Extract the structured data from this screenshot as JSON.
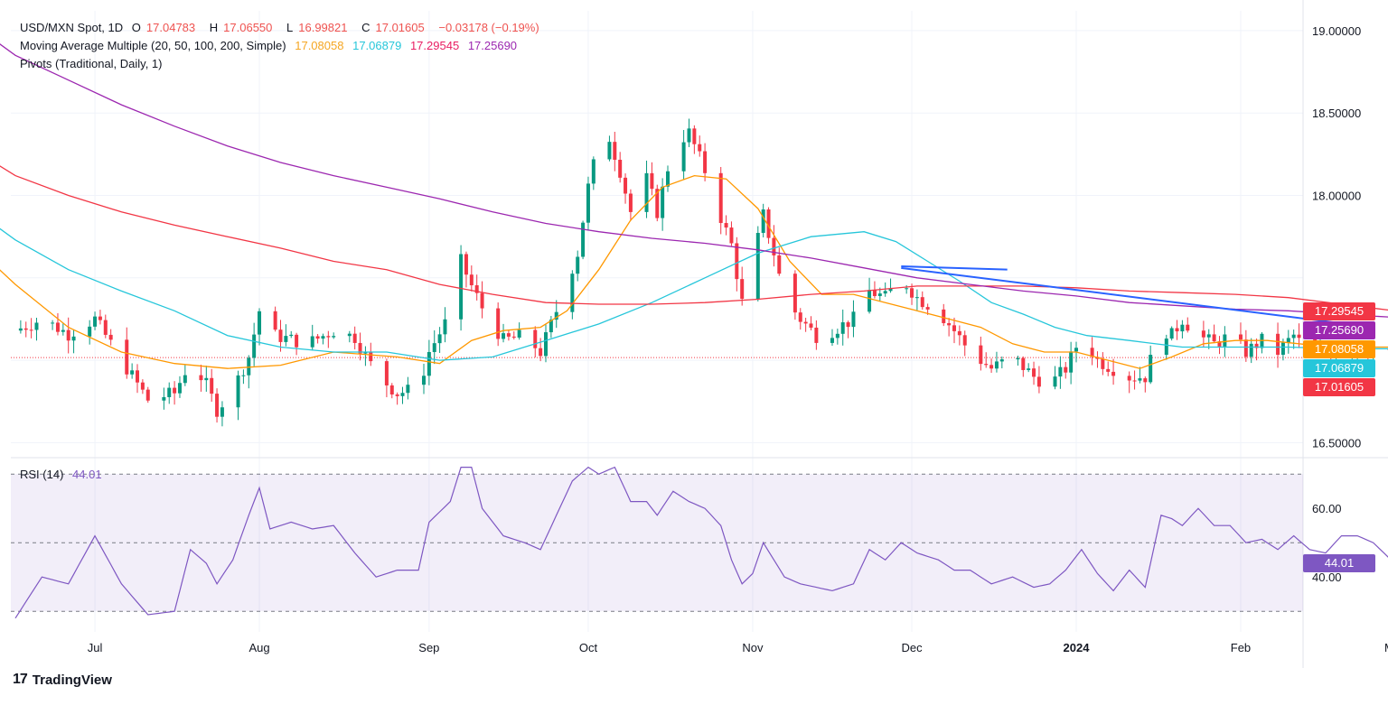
{
  "legend": {
    "symbol": "USD/MXN Spot, 1D",
    "open_label": "O",
    "open": "17.04783",
    "high_label": "H",
    "high": "17.06550",
    "low_label": "L",
    "low": "16.99821",
    "close_label": "C",
    "close": "17.01605",
    "change": "−0.03178 (−0.19%)",
    "ma_label": "Moving Average Multiple (20, 50, 100, 200, Simple)",
    "ma20": "17.08058",
    "ma50": "17.06879",
    "ma100": "17.29545",
    "ma200": "17.25690",
    "pivots_label": "Pivots (Traditional, Daily, 1)",
    "rsi_label": "RSI (14)",
    "rsi_value": "44.01"
  },
  "price_tags": [
    {
      "label": "17.29545",
      "value": 17.29545,
      "color": "#f23645"
    },
    {
      "label": "17.25690",
      "value": 17.2569,
      "color": "#9c27b0"
    },
    {
      "label": "17.08058",
      "value": 17.08058,
      "color": "#ff9800"
    },
    {
      "label": "17.06879",
      "value": 17.06879,
      "color": "#26c6da"
    },
    {
      "label": "17.01605",
      "value": 17.01605,
      "color": "#f23645"
    }
  ],
  "rsi_tag": {
    "label": "44.01",
    "value": 44.01,
    "color": "#7e57c2"
  },
  "brand": {
    "name": "TradingView",
    "logo": "17"
  },
  "colors": {
    "up": "#089981",
    "down": "#f23645",
    "ma20": "#ff9800",
    "ma50": "#26c6da",
    "ma100": "#f23645",
    "ma200": "#9c27b0",
    "trendline": "#2962ff",
    "rsi": "#7e57c2",
    "grid": "#f0f3fa"
  },
  "chart_data": {
    "type": "candlestick",
    "title": "USD/MXN Spot, 1D",
    "ylim": [
      16.42,
      19.12
    ],
    "y_ticks": [
      "19.00000",
      "18.50000",
      "18.00000",
      "16.50000"
    ],
    "y_tick_values": [
      19.0,
      18.5,
      18.0,
      16.5
    ],
    "x_ticks": [
      {
        "label": "Jul",
        "day": 15
      },
      {
        "label": "Aug",
        "day": 46
      },
      {
        "label": "Sep",
        "day": 78
      },
      {
        "label": "Oct",
        "day": 108
      },
      {
        "label": "Nov",
        "day": 139
      },
      {
        "label": "Dec",
        "day": 169
      },
      {
        "label": "2024",
        "day": 200,
        "bold": true
      },
      {
        "label": "Feb",
        "day": 231
      },
      {
        "label": "Mar",
        "day": 260
      }
    ],
    "anchors": [
      [
        0,
        17.18
      ],
      [
        5,
        17.25
      ],
      [
        10,
        17.16
      ],
      [
        15,
        17.25
      ],
      [
        20,
        17.0
      ],
      [
        25,
        16.76
      ],
      [
        30,
        16.8
      ],
      [
        33,
        17.0
      ],
      [
        36,
        16.85
      ],
      [
        38,
        16.7
      ],
      [
        41,
        16.82
      ],
      [
        44,
        17.02
      ],
      [
        46,
        17.3
      ],
      [
        49,
        17.15
      ],
      [
        55,
        17.1
      ],
      [
        60,
        17.18
      ],
      [
        64,
        17.14
      ],
      [
        68,
        16.92
      ],
      [
        72,
        16.8
      ],
      [
        76,
        16.83
      ],
      [
        78,
        17.05
      ],
      [
        82,
        17.28
      ],
      [
        84,
        17.6
      ],
      [
        86,
        17.45
      ],
      [
        88,
        17.32
      ],
      [
        92,
        17.12
      ],
      [
        96,
        17.15
      ],
      [
        99,
        17.05
      ],
      [
        102,
        17.3
      ],
      [
        106,
        17.65
      ],
      [
        108,
        18.05
      ],
      [
        111,
        18.45
      ],
      [
        114,
        18.15
      ],
      [
        116,
        17.9
      ],
      [
        119,
        18.1
      ],
      [
        121,
        17.9
      ],
      [
        124,
        18.3
      ],
      [
        127,
        18.38
      ],
      [
        130,
        18.15
      ],
      [
        132,
        17.95
      ],
      [
        135,
        17.7
      ],
      [
        137,
        17.35
      ],
      [
        139,
        17.6
      ],
      [
        141,
        17.88
      ],
      [
        143,
        17.65
      ],
      [
        145,
        17.38
      ],
      [
        148,
        17.25
      ],
      [
        151,
        17.15
      ],
      [
        154,
        17.18
      ],
      [
        158,
        17.25
      ],
      [
        161,
        17.42
      ],
      [
        164,
        17.38
      ],
      [
        167,
        17.5
      ],
      [
        170,
        17.38
      ],
      [
        174,
        17.3
      ],
      [
        177,
        17.18
      ],
      [
        180,
        17.05
      ],
      [
        184,
        16.95
      ],
      [
        188,
        17.02
      ],
      [
        192,
        16.9
      ],
      [
        195,
        16.85
      ],
      [
        198,
        16.95
      ],
      [
        201,
        17.15
      ],
      [
        204,
        17.0
      ],
      [
        207,
        16.95
      ],
      [
        210,
        16.9
      ],
      [
        213,
        16.9
      ],
      [
        216,
        17.2
      ],
      [
        218,
        17.15
      ],
      [
        220,
        17.25
      ],
      [
        223,
        17.15
      ],
      [
        226,
        17.1
      ],
      [
        229,
        17.15
      ],
      [
        232,
        17.05
      ],
      [
        235,
        17.12
      ],
      [
        238,
        17.05
      ],
      [
        241,
        17.15
      ],
      [
        244,
        17.04
      ],
      [
        247,
        17.06
      ],
      [
        250,
        17.05
      ],
      [
        253,
        17.08
      ],
      [
        256,
        17.07
      ],
      [
        258,
        17.05
      ],
      [
        260,
        17.016
      ]
    ],
    "ma_series": [
      {
        "name": "MA 20",
        "color": "#ff9800",
        "points": [
          [
            -5,
            17.55
          ],
          [
            0,
            17.46
          ],
          [
            10,
            17.2
          ],
          [
            20,
            17.05
          ],
          [
            30,
            16.98
          ],
          [
            40,
            16.95
          ],
          [
            50,
            16.97
          ],
          [
            60,
            17.05
          ],
          [
            72,
            17.02
          ],
          [
            80,
            16.98
          ],
          [
            86,
            17.12
          ],
          [
            92,
            17.18
          ],
          [
            99,
            17.2
          ],
          [
            104,
            17.3
          ],
          [
            110,
            17.55
          ],
          [
            116,
            17.85
          ],
          [
            122,
            18.05
          ],
          [
            128,
            18.12
          ],
          [
            134,
            18.1
          ],
          [
            140,
            17.92
          ],
          [
            146,
            17.6
          ],
          [
            152,
            17.4
          ],
          [
            158,
            17.4
          ],
          [
            164,
            17.35
          ],
          [
            170,
            17.3
          ],
          [
            176,
            17.25
          ],
          [
            182,
            17.2
          ],
          [
            188,
            17.1
          ],
          [
            194,
            17.05
          ],
          [
            200,
            17.05
          ],
          [
            206,
            17.0
          ],
          [
            212,
            16.95
          ],
          [
            218,
            17.02
          ],
          [
            224,
            17.1
          ],
          [
            230,
            17.12
          ],
          [
            236,
            17.12
          ],
          [
            242,
            17.1
          ],
          [
            248,
            17.08
          ],
          [
            254,
            17.08
          ],
          [
            260,
            17.08
          ]
        ]
      },
      {
        "name": "MA 50",
        "color": "#26c6da",
        "points": [
          [
            -5,
            17.8
          ],
          [
            0,
            17.73
          ],
          [
            10,
            17.55
          ],
          [
            20,
            17.42
          ],
          [
            30,
            17.3
          ],
          [
            40,
            17.15
          ],
          [
            50,
            17.08
          ],
          [
            60,
            17.05
          ],
          [
            70,
            17.05
          ],
          [
            80,
            17.0
          ],
          [
            90,
            17.02
          ],
          [
            100,
            17.12
          ],
          [
            110,
            17.22
          ],
          [
            120,
            17.35
          ],
          [
            130,
            17.5
          ],
          [
            140,
            17.65
          ],
          [
            150,
            17.75
          ],
          [
            160,
            17.78
          ],
          [
            166,
            17.72
          ],
          [
            172,
            17.6
          ],
          [
            178,
            17.48
          ],
          [
            184,
            17.35
          ],
          [
            190,
            17.28
          ],
          [
            196,
            17.2
          ],
          [
            202,
            17.15
          ],
          [
            210,
            17.12
          ],
          [
            220,
            17.08
          ],
          [
            230,
            17.08
          ],
          [
            240,
            17.08
          ],
          [
            250,
            17.07
          ],
          [
            260,
            17.07
          ]
        ]
      },
      {
        "name": "MA 100",
        "color": "#f23645",
        "points": [
          [
            -5,
            18.18
          ],
          [
            0,
            18.12
          ],
          [
            10,
            18.0
          ],
          [
            20,
            17.9
          ],
          [
            30,
            17.82
          ],
          [
            40,
            17.75
          ],
          [
            50,
            17.68
          ],
          [
            60,
            17.6
          ],
          [
            70,
            17.55
          ],
          [
            80,
            17.46
          ],
          [
            90,
            17.4
          ],
          [
            100,
            17.35
          ],
          [
            110,
            17.34
          ],
          [
            120,
            17.34
          ],
          [
            130,
            17.35
          ],
          [
            140,
            17.37
          ],
          [
            150,
            17.4
          ],
          [
            160,
            17.42
          ],
          [
            170,
            17.45
          ],
          [
            180,
            17.45
          ],
          [
            190,
            17.45
          ],
          [
            200,
            17.44
          ],
          [
            210,
            17.42
          ],
          [
            220,
            17.41
          ],
          [
            230,
            17.4
          ],
          [
            240,
            17.38
          ],
          [
            250,
            17.34
          ],
          [
            260,
            17.3
          ]
        ]
      },
      {
        "name": "MA 200",
        "color": "#9c27b0",
        "points": [
          [
            -5,
            18.92
          ],
          [
            0,
            18.85
          ],
          [
            10,
            18.7
          ],
          [
            20,
            18.55
          ],
          [
            30,
            18.42
          ],
          [
            40,
            18.3
          ],
          [
            50,
            18.2
          ],
          [
            60,
            18.12
          ],
          [
            70,
            18.05
          ],
          [
            80,
            17.98
          ],
          [
            90,
            17.9
          ],
          [
            100,
            17.83
          ],
          [
            110,
            17.78
          ],
          [
            120,
            17.74
          ],
          [
            130,
            17.71
          ],
          [
            140,
            17.67
          ],
          [
            150,
            17.62
          ],
          [
            160,
            17.56
          ],
          [
            170,
            17.5
          ],
          [
            180,
            17.46
          ],
          [
            190,
            17.42
          ],
          [
            200,
            17.39
          ],
          [
            210,
            17.35
          ],
          [
            220,
            17.33
          ],
          [
            230,
            17.31
          ],
          [
            240,
            17.3
          ],
          [
            250,
            17.28
          ],
          [
            260,
            17.26
          ]
        ]
      }
    ],
    "trendlines": [
      {
        "from": [
          167,
          17.57
        ],
        "to": [
          187,
          17.55
        ]
      },
      {
        "from": [
          167,
          17.56
        ],
        "to": [
          256,
          17.2
        ]
      }
    ],
    "rsi": {
      "label": "RSI (14)",
      "ylim": [
        24,
        74
      ],
      "levels": [
        70,
        50,
        30
      ],
      "ticks": [
        "60.00",
        "40.00"
      ],
      "tick_values": [
        60,
        40
      ],
      "anchors": [
        [
          0,
          28
        ],
        [
          5,
          40
        ],
        [
          10,
          38
        ],
        [
          15,
          52
        ],
        [
          20,
          38
        ],
        [
          25,
          29
        ],
        [
          30,
          30
        ],
        [
          33,
          48
        ],
        [
          36,
          44
        ],
        [
          38,
          38
        ],
        [
          41,
          45
        ],
        [
          44,
          58
        ],
        [
          46,
          66
        ],
        [
          48,
          54
        ],
        [
          52,
          56
        ],
        [
          56,
          54
        ],
        [
          60,
          55
        ],
        [
          64,
          47
        ],
        [
          68,
          40
        ],
        [
          72,
          42
        ],
        [
          76,
          42
        ],
        [
          78,
          56
        ],
        [
          82,
          62
        ],
        [
          84,
          72
        ],
        [
          86,
          72
        ],
        [
          88,
          60
        ],
        [
          92,
          52
        ],
        [
          96,
          50
        ],
        [
          99,
          48
        ],
        [
          102,
          58
        ],
        [
          105,
          68
        ],
        [
          108,
          72
        ],
        [
          110,
          70
        ],
        [
          113,
          72
        ],
        [
          116,
          62
        ],
        [
          119,
          62
        ],
        [
          121,
          58
        ],
        [
          124,
          65
        ],
        [
          127,
          62
        ],
        [
          130,
          60
        ],
        [
          133,
          55
        ],
        [
          135,
          45
        ],
        [
          137,
          38
        ],
        [
          139,
          41
        ],
        [
          141,
          50
        ],
        [
          143,
          45
        ],
        [
          145,
          40
        ],
        [
          148,
          38
        ],
        [
          151,
          37
        ],
        [
          154,
          36
        ],
        [
          158,
          38
        ],
        [
          161,
          48
        ],
        [
          164,
          45
        ],
        [
          167,
          50
        ],
        [
          170,
          47
        ],
        [
          174,
          45
        ],
        [
          177,
          42
        ],
        [
          180,
          42
        ],
        [
          184,
          38
        ],
        [
          188,
          40
        ],
        [
          192,
          37
        ],
        [
          195,
          38
        ],
        [
          198,
          42
        ],
        [
          201,
          48
        ],
        [
          204,
          41
        ],
        [
          207,
          36
        ],
        [
          210,
          42
        ],
        [
          213,
          37
        ],
        [
          216,
          58
        ],
        [
          218,
          57
        ],
        [
          220,
          55
        ],
        [
          223,
          60
        ],
        [
          226,
          55
        ],
        [
          229,
          55
        ],
        [
          232,
          50
        ],
        [
          235,
          51
        ],
        [
          238,
          48
        ],
        [
          241,
          52
        ],
        [
          244,
          48
        ],
        [
          247,
          47
        ],
        [
          250,
          52
        ],
        [
          253,
          52
        ],
        [
          256,
          50
        ],
        [
          260,
          44
        ]
      ]
    }
  }
}
